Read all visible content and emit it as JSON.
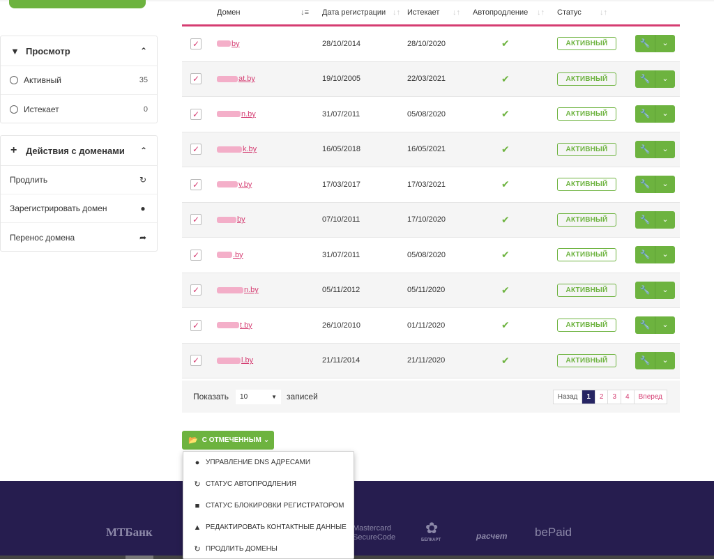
{
  "sidebar": {
    "view_panel": {
      "title": "Просмотр",
      "filters": [
        {
          "label": "Активный",
          "count": "35"
        },
        {
          "label": "Истекает",
          "count": "0"
        }
      ]
    },
    "actions_panel": {
      "title": "Действия с доменами",
      "items": [
        {
          "label": "Продлить",
          "icon": "refresh-icon"
        },
        {
          "label": "Зарегистрировать домен",
          "icon": "globe-icon"
        },
        {
          "label": "Перенос домена",
          "icon": "share-arrow-icon"
        }
      ]
    }
  },
  "table": {
    "headers": {
      "domain": "Домен",
      "registered": "Дата регистрации",
      "expires": "Истекает",
      "autorenew": "Автопродление",
      "status": "Статус"
    },
    "rows": [
      {
        "domain": "by",
        "registered": "28/10/2014",
        "expires": "28/10/2020",
        "status": "АКТИВНЫЙ"
      },
      {
        "domain": "at.by",
        "registered": "19/10/2005",
        "expires": "22/03/2021",
        "status": "АКТИВНЫЙ"
      },
      {
        "domain": "n.by",
        "registered": "31/07/2011",
        "expires": "05/08/2020",
        "status": "АКТИВНЫЙ"
      },
      {
        "domain": "k.by",
        "registered": "16/05/2018",
        "expires": "16/05/2021",
        "status": "АКТИВНЫЙ"
      },
      {
        "domain": "v.by",
        "registered": "17/03/2017",
        "expires": "17/03/2021",
        "status": "АКТИВНЫЙ"
      },
      {
        "domain": "by",
        "registered": "07/10/2011",
        "expires": "17/10/2020",
        "status": "АКТИВНЫЙ"
      },
      {
        "domain": ".by",
        "registered": "31/07/2011",
        "expires": "05/08/2020",
        "status": "АКТИВНЫЙ"
      },
      {
        "domain": "n.by",
        "registered": "05/11/2012",
        "expires": "05/11/2020",
        "status": "АКТИВНЫЙ"
      },
      {
        "domain": "t.by",
        "registered": "26/10/2010",
        "expires": "01/11/2020",
        "status": "АКТИВНЫЙ"
      },
      {
        "domain": "l.by",
        "registered": "21/11/2014",
        "expires": "21/11/2020",
        "status": "АКТИВНЫЙ"
      }
    ]
  },
  "pagination": {
    "show_label": "Показать",
    "page_size": "10",
    "entries_label": "записей",
    "prev": "Назад",
    "pages": [
      "1",
      "2",
      "3",
      "4"
    ],
    "current": "1",
    "next": "Вперед"
  },
  "bulk": {
    "button_label": "С ОТМЕЧЕННЫМ",
    "menu": [
      {
        "label": "УПРАВЛЕНИЕ DNS АДРЕСАМИ",
        "icon": "globe-icon"
      },
      {
        "label": "СТАТУС АВТОПРОДЛЕНИЯ",
        "icon": "refresh-icon"
      },
      {
        "label": "СТАТУС БЛОКИРОВКИ РЕГИСТРАТОРОМ",
        "icon": "lock-icon"
      },
      {
        "label": "РЕДАКТИРОВАТЬ КОНТАКТНЫЕ ДАННЫЕ",
        "icon": "user-icon"
      },
      {
        "label": "ПРОДЛИТЬ ДОМЕНЫ",
        "icon": "refresh-icon"
      }
    ]
  },
  "footer": {
    "logos": [
      "МТБанк",
      "Mastercard SecureCode",
      "БЕЛКАРТ",
      "расчет",
      "bePaid"
    ]
  },
  "colors": {
    "accent_green": "#6db33f",
    "accent_pink": "#d53d72",
    "footer_bg": "#261d4f",
    "pager_active": "#262563"
  }
}
